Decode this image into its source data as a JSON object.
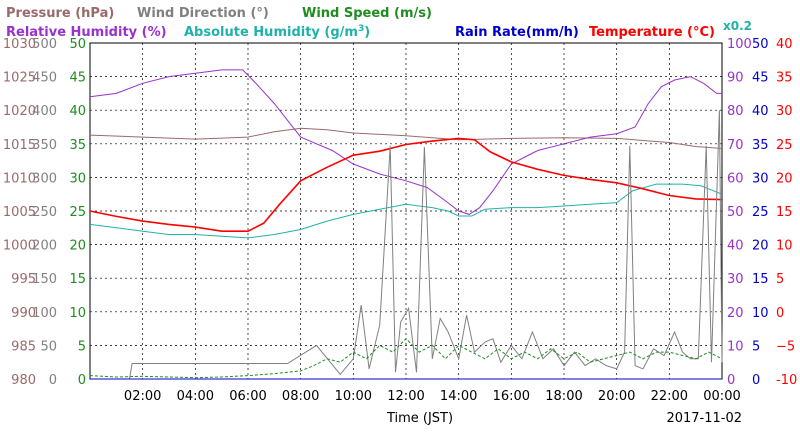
{
  "legend": [
    {
      "key": "pressure",
      "text": "Pressure (hPa)",
      "color": "#9a6a6a"
    },
    {
      "key": "wind_direction",
      "text": "Wind Direction (°)",
      "color": "#808080"
    },
    {
      "key": "wind_speed",
      "text": "Wind Speed (m/s)",
      "color": "#1e8c1e"
    },
    {
      "key": "relative_humidity",
      "text": "Relative Humidity (%)",
      "color": "#9932cc"
    },
    {
      "key": "absolute_humidity",
      "text": "Absolute Humidity (g/m",
      "suffix": ")",
      "sup": "3",
      "color": "#20b2aa"
    },
    {
      "key": "rain_rate",
      "text": "Rain Rate(mm/h)",
      "color": "#0000cc"
    },
    {
      "key": "temperature",
      "text": "Temperature (°C)",
      "color": "#ff0000"
    }
  ],
  "scale_note": "x0.2",
  "xlabel": "Time (JST)",
  "date": "2017-11-02",
  "chart_data": {
    "type": "line",
    "x_unit": "hour of day (JST)",
    "x_range": [
      0,
      24
    ],
    "x_ticks": [
      "02:00",
      "04:00",
      "06:00",
      "08:00",
      "10:00",
      "12:00",
      "14:00",
      "16:00",
      "18:00",
      "20:00",
      "22:00",
      "00:00"
    ],
    "grid": true,
    "axes": {
      "pressure": {
        "range": [
          980,
          1030
        ],
        "ticks": [
          "980",
          "985",
          "990",
          "995",
          "1000",
          "1005",
          "1010",
          "1015",
          "1020",
          "1025",
          "1030"
        ],
        "color": "#9a6a6a"
      },
      "wind_direction": {
        "range": [
          0,
          500
        ],
        "ticks": [
          "0",
          "50",
          "100",
          "150",
          "200",
          "250",
          "300",
          "350",
          "400",
          "450",
          "500"
        ],
        "color": "#808080"
      },
      "wind_speed": {
        "range": [
          0,
          50
        ],
        "ticks": [
          "0",
          "5",
          "10",
          "15",
          "20",
          "25",
          "30",
          "35",
          "40",
          "45",
          "50"
        ],
        "color": "#1e8c1e"
      },
      "relative_humidity": {
        "range": [
          0,
          100
        ],
        "ticks": [
          "0",
          "10",
          "20",
          "30",
          "40",
          "50",
          "60",
          "70",
          "80",
          "90",
          "100"
        ],
        "color": "#9932cc"
      },
      "rain_rate": {
        "range": [
          0,
          50
        ],
        "ticks": [
          "0",
          "5",
          "10",
          "15",
          "20",
          "25",
          "30",
          "35",
          "40",
          "45",
          "50"
        ],
        "color": "#0000cc"
      },
      "temperature": {
        "range": [
          -10,
          40
        ],
        "ticks": [
          "-10",
          "−5",
          "0",
          "5",
          "10",
          "15",
          "20",
          "25",
          "30",
          "35",
          "40"
        ],
        "color": "#ff0000"
      }
    },
    "series": [
      {
        "key": "pressure",
        "color": "#9a6a6a",
        "axis": "pressure",
        "points": [
          [
            0,
            1016.3
          ],
          [
            2,
            1016
          ],
          [
            4,
            1015.7
          ],
          [
            6,
            1016
          ],
          [
            7,
            1016.8
          ],
          [
            8,
            1017.3
          ],
          [
            9,
            1017.1
          ],
          [
            10,
            1016.6
          ],
          [
            12,
            1016.2
          ],
          [
            14,
            1015.6
          ],
          [
            16,
            1015.8
          ],
          [
            18,
            1015.9
          ],
          [
            20,
            1015.8
          ],
          [
            22,
            1015.2
          ],
          [
            23,
            1014.6
          ],
          [
            24,
            1014.3
          ]
        ]
      },
      {
        "key": "relative_humidity",
        "color": "#9932cc",
        "axis": "relative_humidity",
        "points": [
          [
            0,
            84
          ],
          [
            1,
            85
          ],
          [
            2,
            88
          ],
          [
            3,
            90
          ],
          [
            4,
            91
          ],
          [
            5,
            92
          ],
          [
            5.8,
            92
          ],
          [
            6.3,
            88
          ],
          [
            7,
            82
          ],
          [
            7.5,
            77
          ],
          [
            8,
            72
          ],
          [
            8.6,
            70
          ],
          [
            9.2,
            68
          ],
          [
            10,
            64
          ],
          [
            11,
            61
          ],
          [
            12,
            59
          ],
          [
            12.8,
            57
          ],
          [
            13.5,
            53
          ],
          [
            14,
            50
          ],
          [
            14.4,
            49
          ],
          [
            14.8,
            51
          ],
          [
            15.3,
            56
          ],
          [
            16,
            64
          ],
          [
            17,
            68
          ],
          [
            18,
            70
          ],
          [
            19,
            72
          ],
          [
            20,
            73
          ],
          [
            20.7,
            75
          ],
          [
            21.2,
            82
          ],
          [
            21.7,
            87
          ],
          [
            22.2,
            89
          ],
          [
            22.8,
            90
          ],
          [
            23.3,
            88
          ],
          [
            23.8,
            85
          ],
          [
            24,
            85
          ]
        ]
      },
      {
        "key": "absolute_humidity",
        "color": "#20b2aa",
        "axis": "relative_humidity",
        "points": [
          [
            0,
            46
          ],
          [
            1,
            45
          ],
          [
            2,
            44
          ],
          [
            3,
            43
          ],
          [
            4,
            43
          ],
          [
            5,
            42.5
          ],
          [
            6,
            42
          ],
          [
            7,
            43
          ],
          [
            8,
            44.5
          ],
          [
            9,
            47
          ],
          [
            10,
            49
          ],
          [
            11,
            50.5
          ],
          [
            12,
            52
          ],
          [
            12.5,
            51.5
          ],
          [
            13,
            51
          ],
          [
            13.6,
            50
          ],
          [
            14,
            48.5
          ],
          [
            14.5,
            48.5
          ],
          [
            15,
            50.5
          ],
          [
            16,
            51
          ],
          [
            17,
            51
          ],
          [
            18,
            51.5
          ],
          [
            19,
            52
          ],
          [
            20,
            52.5
          ],
          [
            20.6,
            56
          ],
          [
            21.5,
            58
          ],
          [
            22.5,
            58
          ],
          [
            23.2,
            57.5
          ],
          [
            24,
            55
          ]
        ]
      },
      {
        "key": "temperature",
        "color": "#ff0000",
        "axis": "temperature",
        "points": [
          [
            0,
            15
          ],
          [
            1,
            14.2
          ],
          [
            2,
            13.5
          ],
          [
            3,
            13
          ],
          [
            4,
            12.6
          ],
          [
            5,
            12
          ],
          [
            6,
            12
          ],
          [
            6.6,
            13.2
          ],
          [
            7.2,
            16
          ],
          [
            8,
            19.5
          ],
          [
            9,
            21.5
          ],
          [
            10,
            23.3
          ],
          [
            11,
            23.9
          ],
          [
            12,
            24.9
          ],
          [
            13,
            25.4
          ],
          [
            14,
            25.8
          ],
          [
            14.6,
            25.6
          ],
          [
            15.2,
            23.8
          ],
          [
            16,
            22.3
          ],
          [
            17,
            21.2
          ],
          [
            18,
            20.3
          ],
          [
            19,
            19.7
          ],
          [
            20,
            19.2
          ],
          [
            21,
            18.3
          ],
          [
            22,
            17.3
          ],
          [
            23,
            16.8
          ],
          [
            24,
            16.7
          ]
        ]
      },
      {
        "key": "wind_direction",
        "color": "#808080",
        "axis": "wind_direction",
        "points": [
          [
            0,
            0
          ],
          [
            1.5,
            0
          ],
          [
            1.6,
            23
          ],
          [
            7,
            23
          ],
          [
            7.5,
            23
          ],
          [
            8.6,
            50
          ],
          [
            9.5,
            7
          ],
          [
            10,
            30
          ],
          [
            10.3,
            110
          ],
          [
            10.6,
            15
          ],
          [
            11,
            80
          ],
          [
            11.4,
            347
          ],
          [
            11.6,
            10
          ],
          [
            11.8,
            85
          ],
          [
            12.1,
            105
          ],
          [
            12.4,
            10
          ],
          [
            12.7,
            345
          ],
          [
            13,
            30
          ],
          [
            13.3,
            90
          ],
          [
            13.6,
            70
          ],
          [
            14,
            30
          ],
          [
            14.3,
            95
          ],
          [
            14.6,
            40
          ],
          [
            15,
            55
          ],
          [
            15.3,
            60
          ],
          [
            15.6,
            25
          ],
          [
            16,
            50
          ],
          [
            16.4,
            30
          ],
          [
            16.8,
            70
          ],
          [
            17.2,
            30
          ],
          [
            17.6,
            45
          ],
          [
            18,
            20
          ],
          [
            18.4,
            40
          ],
          [
            18.8,
            20
          ],
          [
            19.2,
            30
          ],
          [
            19.6,
            20
          ],
          [
            20,
            15
          ],
          [
            20.3,
            40
          ],
          [
            20.5,
            347
          ],
          [
            20.7,
            20
          ],
          [
            21,
            15
          ],
          [
            21.4,
            45
          ],
          [
            21.8,
            35
          ],
          [
            22.2,
            70
          ],
          [
            22.5,
            40
          ],
          [
            22.8,
            30
          ],
          [
            23.1,
            30
          ],
          [
            23.4,
            347
          ],
          [
            23.6,
            25
          ],
          [
            23.9,
            400
          ],
          [
            24,
            25
          ]
        ]
      },
      {
        "key": "wind_speed",
        "color": "#1e8c1e",
        "axis": "wind_speed",
        "points": [
          [
            0,
            0.5
          ],
          [
            1,
            0.3
          ],
          [
            2,
            0.4
          ],
          [
            3,
            0.3
          ],
          [
            4,
            0.2
          ],
          [
            5,
            0.3
          ],
          [
            6,
            0.5
          ],
          [
            7,
            0.8
          ],
          [
            8,
            1.2
          ],
          [
            8.5,
            2
          ],
          [
            9,
            3
          ],
          [
            9.5,
            2.5
          ],
          [
            10,
            4
          ],
          [
            10.5,
            3
          ],
          [
            11,
            5
          ],
          [
            11.5,
            4
          ],
          [
            12,
            6
          ],
          [
            12.5,
            4
          ],
          [
            13,
            5
          ],
          [
            13.5,
            3
          ],
          [
            14,
            5
          ],
          [
            14.5,
            4
          ],
          [
            15,
            3
          ],
          [
            15.5,
            4.5
          ],
          [
            16,
            3
          ],
          [
            16.5,
            4
          ],
          [
            17,
            3
          ],
          [
            17.5,
            4.5
          ],
          [
            18,
            3
          ],
          [
            18.5,
            4
          ],
          [
            19,
            2.5
          ],
          [
            19.5,
            3
          ],
          [
            20,
            3.5
          ],
          [
            20.5,
            4
          ],
          [
            21,
            3
          ],
          [
            21.5,
            4
          ],
          [
            22,
            4
          ],
          [
            22.5,
            3.5
          ],
          [
            23,
            3
          ],
          [
            23.5,
            4
          ],
          [
            24,
            3
          ]
        ]
      },
      {
        "key": "rain_rate",
        "color": "#0000cc",
        "axis": "rain_rate",
        "points": [
          [
            0,
            0
          ],
          [
            24,
            0
          ]
        ]
      }
    ]
  }
}
